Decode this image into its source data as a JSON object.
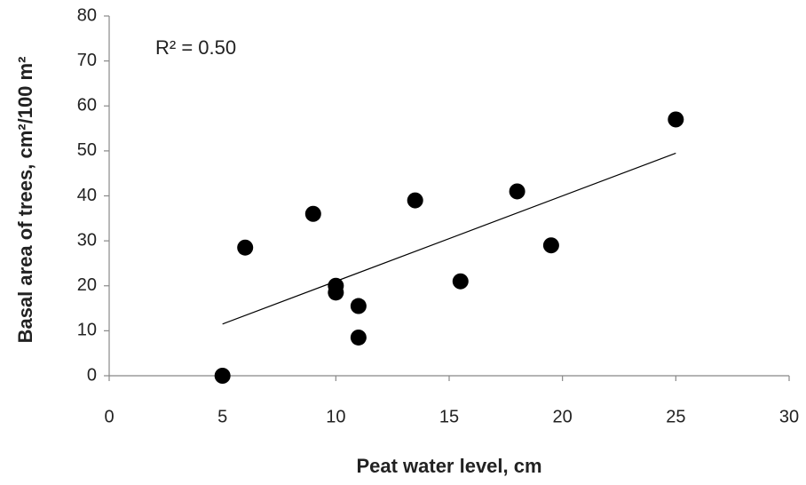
{
  "chart_data": {
    "type": "scatter",
    "xlabel": "Peat water level, cm",
    "ylabel": "Basal area of trees, cm²/100 m²",
    "annotation": "R² = 0.50",
    "x": [
      5,
      6,
      9,
      10,
      10,
      11,
      11,
      13.5,
      15.5,
      18,
      19.5,
      25
    ],
    "y": [
      0,
      28.5,
      36,
      20,
      18.5,
      15.5,
      8.5,
      39,
      21,
      41,
      29,
      57
    ],
    "color": "#000000",
    "trendline": {
      "x": [
        5,
        25
      ],
      "y": [
        11.5,
        49.5
      ],
      "color": "#000000"
    },
    "xlim": [
      0,
      30
    ],
    "xticks": [
      0,
      5,
      10,
      15,
      20,
      25,
      30
    ],
    "ylim": [
      0,
      80
    ],
    "yticks": [
      0,
      10,
      20,
      30,
      40,
      50,
      60,
      70,
      80
    ],
    "grid": false
  }
}
